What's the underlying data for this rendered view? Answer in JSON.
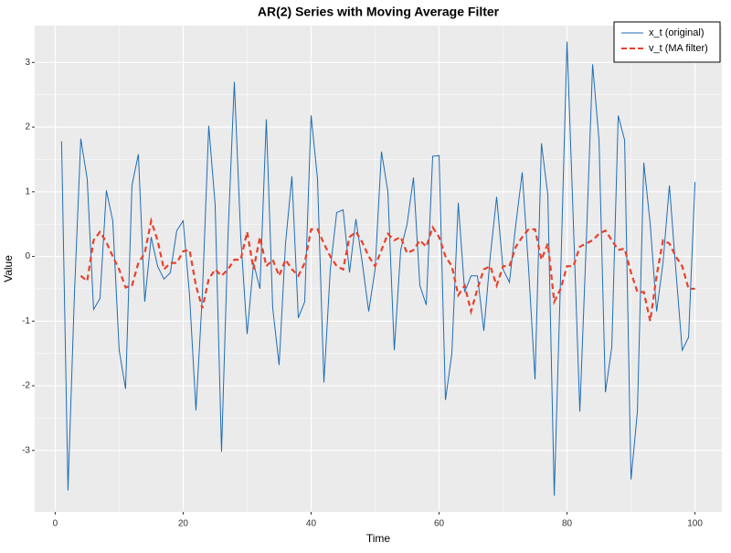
{
  "chart_data": {
    "type": "line",
    "title": "AR(2) Series with Moving Average Filter",
    "x_label": "Time",
    "y_label": "Value",
    "x": [
      1,
      2,
      3,
      4,
      5,
      6,
      7,
      8,
      9,
      10,
      11,
      12,
      13,
      14,
      15,
      16,
      17,
      18,
      19,
      20,
      21,
      22,
      23,
      24,
      25,
      26,
      27,
      28,
      29,
      30,
      31,
      32,
      33,
      34,
      35,
      36,
      37,
      38,
      39,
      40,
      41,
      42,
      43,
      44,
      45,
      46,
      47,
      48,
      49,
      50,
      51,
      52,
      53,
      54,
      55,
      56,
      57,
      58,
      59,
      60,
      61,
      62,
      63,
      64,
      65,
      66,
      67,
      68,
      69,
      70,
      71,
      72,
      73,
      74,
      75,
      76,
      77,
      78,
      79,
      80,
      81,
      82,
      83,
      84,
      85,
      86,
      87,
      88,
      89,
      90,
      91,
      92,
      93,
      94,
      95,
      96,
      97,
      98,
      99,
      100
    ],
    "series": [
      {
        "name": "x_t (original)",
        "color": "#1f6db5",
        "dash": false,
        "values": [
          1.78,
          -3.62,
          -0.6,
          1.82,
          1.2,
          -0.82,
          -0.65,
          1.02,
          0.55,
          -1.45,
          -2.05,
          1.1,
          1.58,
          -0.7,
          0.3,
          -0.15,
          -0.35,
          -0.25,
          0.4,
          0.55,
          -0.6,
          -2.38,
          -0.6,
          2.02,
          0.8,
          -3.02,
          0.3,
          2.7,
          0.3,
          -1.2,
          -0.1,
          -0.5,
          2.12,
          -0.8,
          -1.68,
          0.2,
          1.24,
          -0.95,
          -0.7,
          2.18,
          1.2,
          -1.95,
          -0.2,
          0.68,
          0.72,
          -0.25,
          0.58,
          -0.1,
          -0.85,
          -0.2,
          1.62,
          1.0,
          -1.45,
          0.1,
          0.5,
          1.22,
          -0.45,
          -0.75,
          1.55,
          1.56,
          -2.22,
          -1.5,
          0.83,
          -0.55,
          -0.3,
          -0.3,
          -1.15,
          0.0,
          0.92,
          -0.2,
          -0.4,
          0.5,
          1.3,
          -0.2,
          -1.9,
          1.75,
          0.95,
          -3.7,
          -0.3,
          3.32,
          0.5,
          -2.4,
          0.2,
          2.97,
          1.8,
          -2.1,
          -1.4,
          2.18,
          1.8,
          -3.45,
          -2.4,
          1.45,
          0.5,
          -0.85,
          -0.1,
          1.1,
          -0.2,
          -1.45,
          -1.25,
          1.15
        ]
      },
      {
        "name": "v_t (MA filter)",
        "color": "#e8412c",
        "dash": true,
        "values": [
          null,
          null,
          null,
          -0.3,
          -0.38,
          0.25,
          0.38,
          0.22,
          0.0,
          -0.2,
          -0.48,
          -0.45,
          -0.1,
          0.05,
          0.55,
          0.25,
          -0.2,
          -0.1,
          -0.1,
          0.08,
          0.1,
          -0.45,
          -0.8,
          -0.35,
          -0.2,
          -0.3,
          -0.2,
          -0.05,
          -0.05,
          0.38,
          -0.2,
          0.3,
          -0.15,
          -0.05,
          -0.3,
          -0.05,
          -0.2,
          -0.3,
          -0.1,
          0.42,
          0.42,
          0.2,
          0.0,
          -0.15,
          -0.2,
          0.3,
          0.38,
          0.22,
          0.0,
          -0.15,
          0.1,
          0.35,
          0.25,
          0.3,
          0.05,
          0.1,
          0.25,
          0.15,
          0.45,
          0.3,
          0.0,
          -0.15,
          -0.6,
          -0.45,
          -0.85,
          -0.5,
          -0.2,
          -0.15,
          -0.45,
          -0.15,
          -0.15,
          0.15,
          0.3,
          0.42,
          0.42,
          -0.05,
          0.2,
          -0.7,
          -0.5,
          -0.15,
          -0.15,
          0.15,
          0.2,
          0.25,
          0.35,
          0.4,
          0.25,
          0.1,
          0.12,
          -0.25,
          -0.55,
          -0.55,
          -1.0,
          -0.3,
          0.25,
          0.2,
          0.0,
          -0.15,
          -0.5,
          -0.5
        ]
      }
    ],
    "xlim": [
      -3.2,
      104.2
    ],
    "xticks": [
      0,
      20,
      40,
      60,
      80,
      100
    ],
    "ylim": [
      -3.95,
      3.57
    ],
    "yticks": [
      -3,
      -2,
      -1,
      0,
      1,
      2,
      3
    ],
    "grid": true,
    "legend_position": "top-right"
  }
}
